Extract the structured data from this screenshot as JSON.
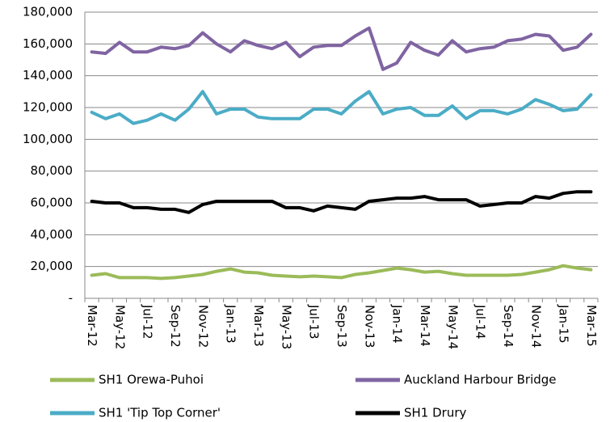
{
  "chart_data": {
    "type": "line",
    "categories": [
      "Mar-12",
      null,
      "May-12",
      null,
      "Jul-12",
      null,
      "Sep-12",
      null,
      "Nov-12",
      null,
      "Jan-13",
      null,
      "Mar-13",
      null,
      "May-13",
      null,
      "Jul-13",
      null,
      "Sep-13",
      null,
      "Nov-13",
      null,
      "Jan-14",
      null,
      "Mar-14",
      null,
      "May-14",
      null,
      "Jul-14",
      null,
      "Sep-14",
      null,
      "Nov-14",
      null,
      "Jan-15",
      null,
      "Mar-15"
    ],
    "series": [
      {
        "name": "SH1 Orewa-Puhoi",
        "color": "#9bbb59",
        "values": [
          14500,
          15500,
          13000,
          13000,
          13000,
          12500,
          13000,
          14000,
          15000,
          17000,
          18500,
          16500,
          16000,
          14500,
          14000,
          13500,
          14000,
          13500,
          13000,
          15000,
          16000,
          17500,
          19000,
          18000,
          16500,
          17000,
          15500,
          14500,
          14500,
          14500,
          14500,
          15000,
          16500,
          18000,
          20500,
          19000,
          18000
        ]
      },
      {
        "name": "Auckland Harbour Bridge",
        "color": "#8064a2",
        "values": [
          155000,
          154000,
          161000,
          155000,
          155000,
          158000,
          157000,
          159000,
          167000,
          160000,
          155000,
          162000,
          159000,
          157000,
          161000,
          152000,
          158000,
          159000,
          159000,
          165000,
          170000,
          144000,
          148000,
          161000,
          156000,
          153000,
          162000,
          155000,
          157000,
          158000,
          162000,
          163000,
          166000,
          165000,
          156000,
          158000,
          166000
        ]
      },
      {
        "name": "SH1 'Tip Top Corner'",
        "color": "#4bacc6",
        "values": [
          117000,
          113000,
          116000,
          110000,
          112000,
          116000,
          112000,
          119000,
          130000,
          116000,
          119000,
          119000,
          114000,
          113000,
          113000,
          113000,
          119000,
          119000,
          116000,
          124000,
          130000,
          116000,
          119000,
          120000,
          115000,
          115000,
          121000,
          113000,
          118000,
          118000,
          116000,
          119000,
          125000,
          122000,
          118000,
          119000,
          128000
        ]
      },
      {
        "name": "SH1 Drury",
        "color": "#000000",
        "values": [
          61000,
          60000,
          60000,
          57000,
          57000,
          56000,
          56000,
          54000,
          59000,
          61000,
          61000,
          61000,
          61000,
          61000,
          57000,
          57000,
          55000,
          58000,
          57000,
          56000,
          61000,
          62000,
          63000,
          63000,
          64000,
          62000,
          62000,
          62000,
          58000,
          59000,
          60000,
          60000,
          64000,
          63000,
          66000,
          67000,
          67000
        ]
      }
    ],
    "ylim": [
      0,
      180000
    ],
    "yticks": [
      {
        "value": 0,
        "label": "-"
      },
      {
        "value": 20000,
        "label": "20,000"
      },
      {
        "value": 40000,
        "label": "40,000"
      },
      {
        "value": 60000,
        "label": "60,000"
      },
      {
        "value": 80000,
        "label": "80,000"
      },
      {
        "value": 100000,
        "label": "100,000"
      },
      {
        "value": 120000,
        "label": "120,000"
      },
      {
        "value": 140000,
        "label": "140,000"
      },
      {
        "value": 160000,
        "label": "160,000"
      },
      {
        "value": 180000,
        "label": "180,000"
      }
    ],
    "grid": true
  }
}
